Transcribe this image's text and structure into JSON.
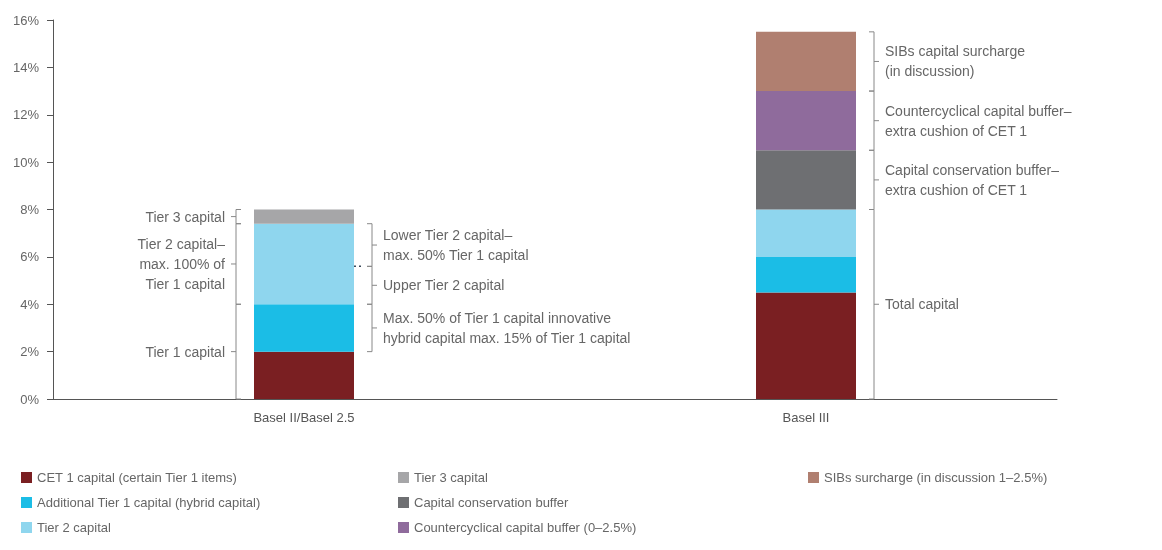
{
  "chart_data": {
    "type": "bar",
    "stacked": true,
    "categories": [
      "Basel II/Basel 2.5",
      "Basel III"
    ],
    "series": [
      {
        "name": "CET 1 capital (certain Tier 1 items)",
        "color": "#7a1f22",
        "values": [
          2,
          4.5
        ]
      },
      {
        "name": "Additional Tier 1 capital (hybrid capital)",
        "color": "#1bbde6",
        "values": [
          2,
          1.5
        ]
      },
      {
        "name": "Tier 2 capital",
        "color": "#8fd6ee",
        "values": [
          3.4,
          2
        ]
      },
      {
        "name": "Tier 3 capital",
        "color": "#a6a6a8",
        "values": [
          0.6,
          null
        ]
      },
      {
        "name": "Capital conservation buffer",
        "color": "#6e6f72",
        "values": [
          null,
          2.5
        ]
      },
      {
        "name": "Countercyclical capital buffer (0–2.5%)",
        "color": "#8f6b9c",
        "values": [
          null,
          2.5
        ]
      },
      {
        "name": "SIBs surcharge (in discussion 1–2.5%)",
        "color": "#b07f70",
        "values": [
          null,
          2.5
        ]
      }
    ],
    "ylim": [
      0,
      16
    ],
    "yticks": [
      {
        "value": 0,
        "label": "0%"
      },
      {
        "value": 2,
        "label": "2%"
      },
      {
        "value": 4,
        "label": "4%"
      },
      {
        "value": 6,
        "label": "6%"
      },
      {
        "value": 8,
        "label": "8%"
      },
      {
        "value": 10,
        "label": "10%"
      },
      {
        "value": 12,
        "label": "12%"
      },
      {
        "value": 14,
        "label": "14%"
      },
      {
        "value": 16,
        "label": "16%"
      }
    ],
    "ref_lines": [
      {
        "axis": "y",
        "value": 5.6,
        "line_style": "dashed",
        "color": "#3a4a5a"
      }
    ],
    "annotations": [
      "Tier 3 capital",
      "Tier 2 capital–\nmax. 100% of\nTier 1 capital",
      "Tier 1 capital",
      "Lower Tier 2 capital–\nmax. 50% Tier 1 capital",
      "Upper Tier 2 capital",
      "Max. 50% of Tier 1 capital innovative\nhybrid capital max. 15% of Tier 1 capital",
      "SIBs capital surcharge\n(in discussion)",
      "Countercyclical capital buffer–\nextra cushion of CET 1",
      "Capital conservation buffer–\nextra cushion of CET 1",
      "Total capital"
    ],
    "grid": false,
    "legend": "bottom"
  }
}
